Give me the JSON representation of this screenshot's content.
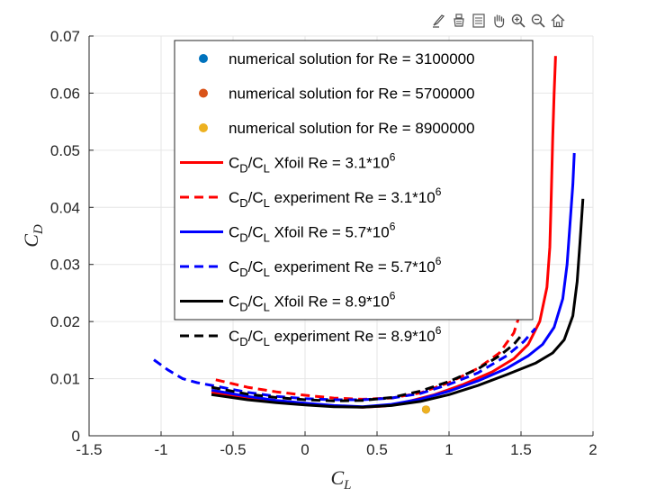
{
  "toolbar": {
    "items": [
      {
        "name": "brush-icon"
      },
      {
        "name": "data-tip-icon"
      },
      {
        "name": "legend-icon"
      },
      {
        "name": "pan-hand-icon"
      },
      {
        "name": "zoom-in-icon"
      },
      {
        "name": "zoom-out-icon"
      },
      {
        "name": "home-icon"
      }
    ]
  },
  "chart_data": {
    "type": "line",
    "title": "",
    "xlabel": {
      "main": "C",
      "sub": "L"
    },
    "ylabel": {
      "main": "C",
      "sub": "D"
    },
    "xlim": [
      -1.5,
      2
    ],
    "ylim": [
      0,
      0.07
    ],
    "xticks": [
      -1.5,
      -1,
      -0.5,
      0,
      0.5,
      1,
      1.5,
      2
    ],
    "xtick_labels": [
      "-1.5",
      "-1",
      "-0.5",
      "0",
      "0.5",
      "1",
      "1.5",
      "2"
    ],
    "yticks": [
      0,
      0.01,
      0.02,
      0.03,
      0.04,
      0.05,
      0.06,
      0.07
    ],
    "ytick_labels": [
      "0",
      "0.01",
      "0.02",
      "0.03",
      "0.04",
      "0.05",
      "0.06",
      "0.07"
    ],
    "grid": true,
    "legend_position": "top-center",
    "colors": {
      "red": "#ff0000",
      "blue": "#0000ff",
      "black": "#000000",
      "dot1": "#0072bd",
      "dot2": "#d95319",
      "dot3": "#edb120",
      "grid": "#e6e6e6",
      "axis": "#262626"
    },
    "series": [
      {
        "name": "numerical solution for Re = 3100000",
        "kind": "marker",
        "color": "#0072bd",
        "points": [
          [
            0.84,
            0.0046
          ]
        ]
      },
      {
        "name": "numerical solution for Re = 5700000",
        "kind": "marker",
        "color": "#d95319",
        "points": [
          [
            0.84,
            0.0046
          ]
        ]
      },
      {
        "name": "numerical solution for Re = 8900000",
        "kind": "marker",
        "color": "#edb120",
        "points": [
          [
            0.84,
            0.0046
          ]
        ]
      },
      {
        "name": {
          "a": "C",
          "a_sub": "D",
          "b": "/C",
          "b_sub": "L",
          "rest": " Xfoil Re = 3.1*10",
          "sup": "6"
        },
        "kind": "line",
        "dash": "solid",
        "color": "#ff0000",
        "points": [
          [
            -0.65,
            0.0076
          ],
          [
            -0.4,
            0.0066
          ],
          [
            -0.2,
            0.006
          ],
          [
            0,
            0.0056
          ],
          [
            0.2,
            0.0052
          ],
          [
            0.4,
            0.005
          ],
          [
            0.55,
            0.0052
          ],
          [
            0.7,
            0.0059
          ],
          [
            0.9,
            0.0072
          ],
          [
            1.1,
            0.009
          ],
          [
            1.3,
            0.0112
          ],
          [
            1.45,
            0.0135
          ],
          [
            1.55,
            0.016
          ],
          [
            1.63,
            0.02
          ],
          [
            1.68,
            0.026
          ],
          [
            1.7,
            0.033
          ],
          [
            1.71,
            0.042
          ],
          [
            1.72,
            0.052
          ],
          [
            1.73,
            0.06
          ],
          [
            1.74,
            0.0665
          ]
        ]
      },
      {
        "name": {
          "a": "C",
          "a_sub": "D",
          "b": "/C",
          "b_sub": "L",
          "rest": " experiment Re = 3.1*10",
          "sup": "6"
        },
        "kind": "line",
        "dash": "dashed",
        "color": "#ff0000",
        "points": [
          [
            -0.62,
            0.0098
          ],
          [
            -0.4,
            0.0085
          ],
          [
            -0.2,
            0.0077
          ],
          [
            0,
            0.0071
          ],
          [
            0.2,
            0.0066
          ],
          [
            0.4,
            0.0064
          ],
          [
            0.6,
            0.0066
          ],
          [
            0.8,
            0.0075
          ],
          [
            1.0,
            0.0093
          ],
          [
            1.2,
            0.0118
          ],
          [
            1.35,
            0.0145
          ],
          [
            1.45,
            0.018
          ],
          [
            1.52,
            0.0235
          ]
        ]
      },
      {
        "name": {
          "a": "C",
          "a_sub": "D",
          "b": "/C",
          "b_sub": "L",
          "rest": " Xfoil Re = 5.7*10",
          "sup": "6"
        },
        "kind": "line",
        "dash": "solid",
        "color": "#0000ff",
        "points": [
          [
            -0.65,
            0.008
          ],
          [
            -0.4,
            0.0069
          ],
          [
            -0.2,
            0.0062
          ],
          [
            0,
            0.0057
          ],
          [
            0.2,
            0.0053
          ],
          [
            0.4,
            0.0051
          ],
          [
            0.6,
            0.0055
          ],
          [
            0.8,
            0.0064
          ],
          [
            1.0,
            0.0078
          ],
          [
            1.2,
            0.0096
          ],
          [
            1.4,
            0.0118
          ],
          [
            1.55,
            0.014
          ],
          [
            1.65,
            0.016
          ],
          [
            1.73,
            0.019
          ],
          [
            1.79,
            0.024
          ],
          [
            1.82,
            0.03
          ],
          [
            1.84,
            0.037
          ],
          [
            1.86,
            0.044
          ],
          [
            1.87,
            0.0495
          ]
        ]
      },
      {
        "name": {
          "a": "C",
          "a_sub": "D",
          "b": "/C",
          "b_sub": "L",
          "rest": " experiment Re = 5.7*10",
          "sup": "6"
        },
        "kind": "line",
        "dash": "dashed",
        "color": "#0000ff",
        "points": [
          [
            -1.05,
            0.0133
          ],
          [
            -0.95,
            0.0115
          ],
          [
            -0.85,
            0.01
          ],
          [
            -0.75,
            0.0093
          ],
          [
            -0.6,
            0.0086
          ],
          [
            -0.4,
            0.0076
          ],
          [
            -0.2,
            0.0069
          ],
          [
            0,
            0.0065
          ],
          [
            0.2,
            0.0063
          ],
          [
            0.4,
            0.0063
          ],
          [
            0.6,
            0.0066
          ],
          [
            0.8,
            0.0074
          ],
          [
            1.0,
            0.009
          ],
          [
            1.2,
            0.011
          ],
          [
            1.4,
            0.014
          ],
          [
            1.52,
            0.0165
          ],
          [
            1.6,
            0.0188
          ]
        ]
      },
      {
        "name": {
          "a": "C",
          "a_sub": "D",
          "b": "/C",
          "b_sub": "L",
          "rest": " Xfoil Re = 8.9*10",
          "sup": "6"
        },
        "kind": "line",
        "dash": "solid",
        "color": "#000000",
        "points": [
          [
            -0.65,
            0.0072
          ],
          [
            -0.4,
            0.0063
          ],
          [
            -0.2,
            0.0058
          ],
          [
            0,
            0.0054
          ],
          [
            0.2,
            0.0051
          ],
          [
            0.4,
            0.005
          ],
          [
            0.6,
            0.0053
          ],
          [
            0.8,
            0.006
          ],
          [
            1.0,
            0.0072
          ],
          [
            1.2,
            0.0088
          ],
          [
            1.4,
            0.0107
          ],
          [
            1.6,
            0.0127
          ],
          [
            1.72,
            0.0145
          ],
          [
            1.8,
            0.0168
          ],
          [
            1.86,
            0.021
          ],
          [
            1.89,
            0.027
          ],
          [
            1.91,
            0.034
          ],
          [
            1.93,
            0.0415
          ]
        ]
      },
      {
        "name": {
          "a": "C",
          "a_sub": "D",
          "b": "/C",
          "b_sub": "L",
          "rest": " experiment Re = 8.9*10",
          "sup": "6"
        },
        "kind": "line",
        "dash": "dashed",
        "color": "#000000",
        "points": [
          [
            -0.65,
            0.0085
          ],
          [
            -0.4,
            0.0073
          ],
          [
            -0.2,
            0.0067
          ],
          [
            0,
            0.0063
          ],
          [
            0.2,
            0.0061
          ],
          [
            0.4,
            0.0062
          ],
          [
            0.6,
            0.0067
          ],
          [
            0.8,
            0.0078
          ],
          [
            1.0,
            0.0095
          ],
          [
            1.2,
            0.0117
          ],
          [
            1.35,
            0.014
          ],
          [
            1.45,
            0.016
          ],
          [
            1.5,
            0.0175
          ]
        ]
      }
    ]
  }
}
